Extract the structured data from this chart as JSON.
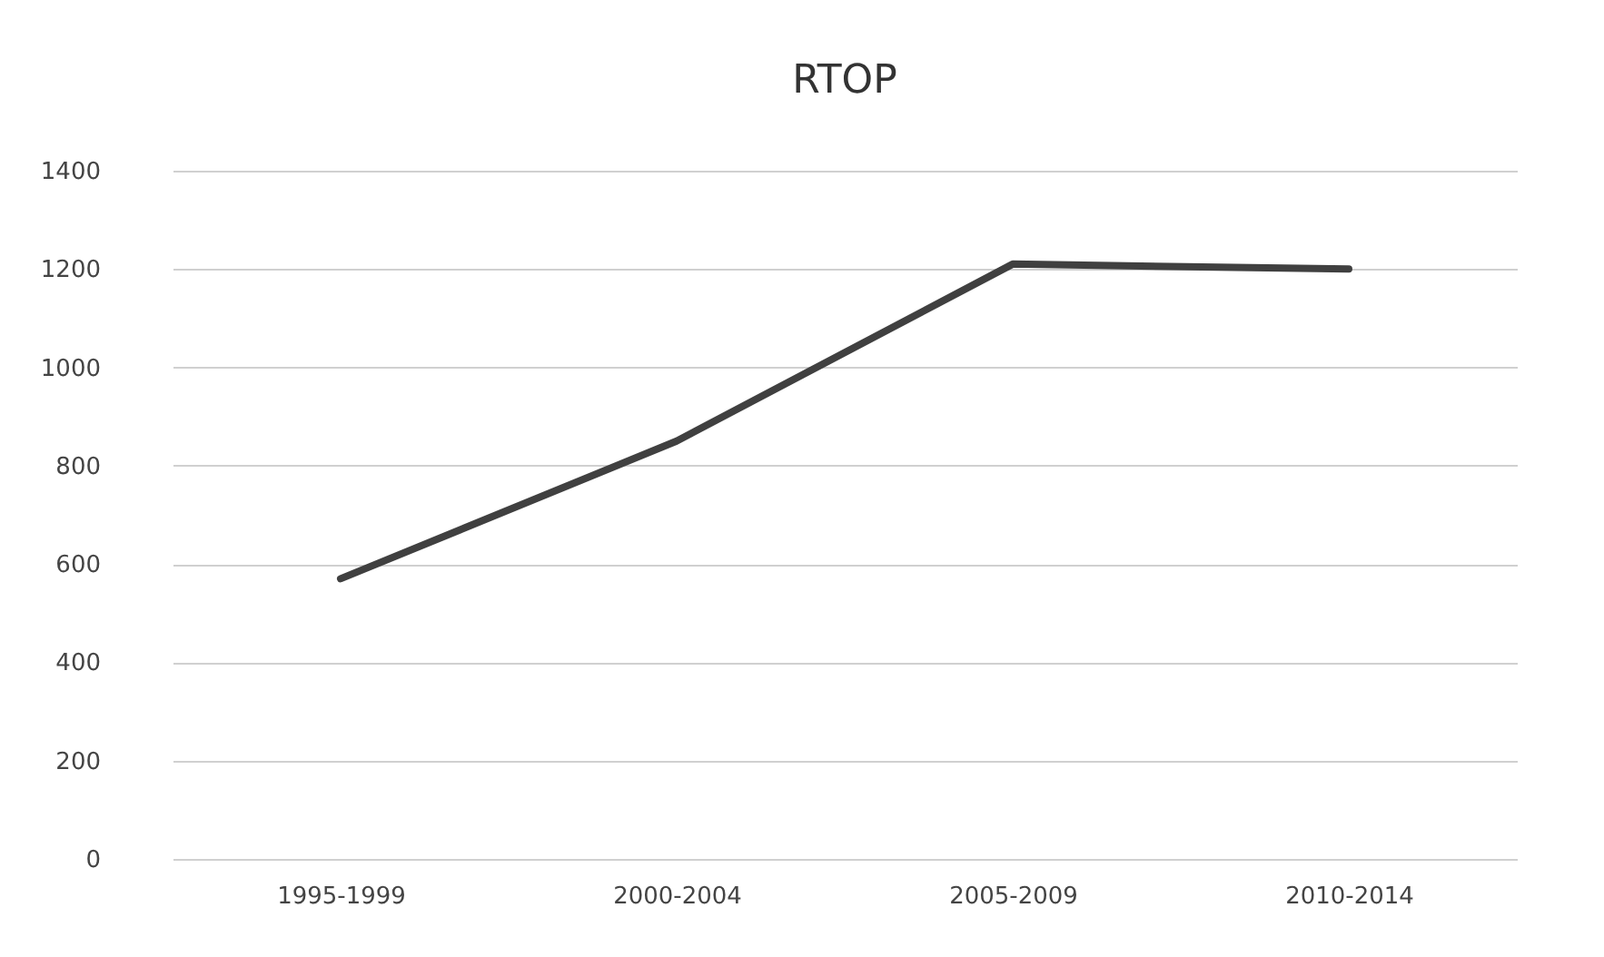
{
  "chart_data": {
    "type": "line",
    "title": "RTOP",
    "categories": [
      "1995-1999",
      "2000-2004",
      "2005-2009",
      "2010-2014"
    ],
    "series": [
      {
        "color": "#404040",
        "values": [
          570,
          850,
          1210,
          1200
        ]
      }
    ],
    "ylim": [
      0,
      1400
    ],
    "yticks": [
      0,
      200,
      400,
      600,
      800,
      1000,
      1200,
      1400
    ],
    "grid": "y",
    "legend": false,
    "marker": "none",
    "line_style": "solid"
  }
}
